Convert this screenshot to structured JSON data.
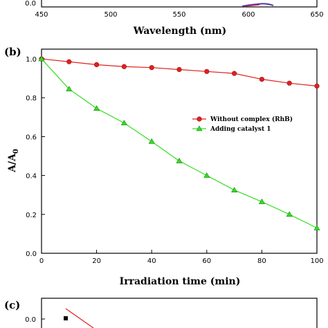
{
  "panels": {
    "a": {
      "xlabel": "Wavelength (nm)",
      "x_ticks": [
        "450",
        "500",
        "550",
        "600",
        "650"
      ],
      "y_ticks": [
        "0.0"
      ]
    },
    "b": {
      "label": "(b)",
      "chart_data": {
        "type": "line",
        "xlabel": "Irradiation time (min)",
        "ylabel_main": "A/A",
        "ylabel_sub": "0",
        "xlim": [
          0,
          100
        ],
        "ylim": [
          0.0,
          1.05
        ],
        "x_ticks": [
          0,
          20,
          40,
          60,
          80,
          100
        ],
        "y_ticks": [
          "0.0",
          "0.2",
          "0.4",
          "0.6",
          "0.8",
          "1.0"
        ],
        "legend_position": "right",
        "series": [
          {
            "name": "Without complex (RhB)",
            "color": "#e02020",
            "marker": "circle",
            "x": [
              0,
              10,
              20,
              30,
              40,
              50,
              60,
              70,
              80,
              90,
              100
            ],
            "y": [
              1.0,
              0.985,
              0.97,
              0.96,
              0.955,
              0.945,
              0.935,
              0.925,
              0.895,
              0.875,
              0.86
            ]
          },
          {
            "name": "Adding catalyst 1",
            "color": "#33dd22",
            "marker": "triangle",
            "x": [
              0,
              10,
              20,
              30,
              40,
              50,
              60,
              70,
              80,
              90,
              100
            ],
            "y": [
              1.0,
              0.845,
              0.745,
              0.67,
              0.575,
              0.475,
              0.4,
              0.325,
              0.265,
              0.2,
              0.13
            ]
          }
        ]
      }
    },
    "c": {
      "label": "(c)",
      "y_ticks": [
        "0.0"
      ]
    }
  }
}
